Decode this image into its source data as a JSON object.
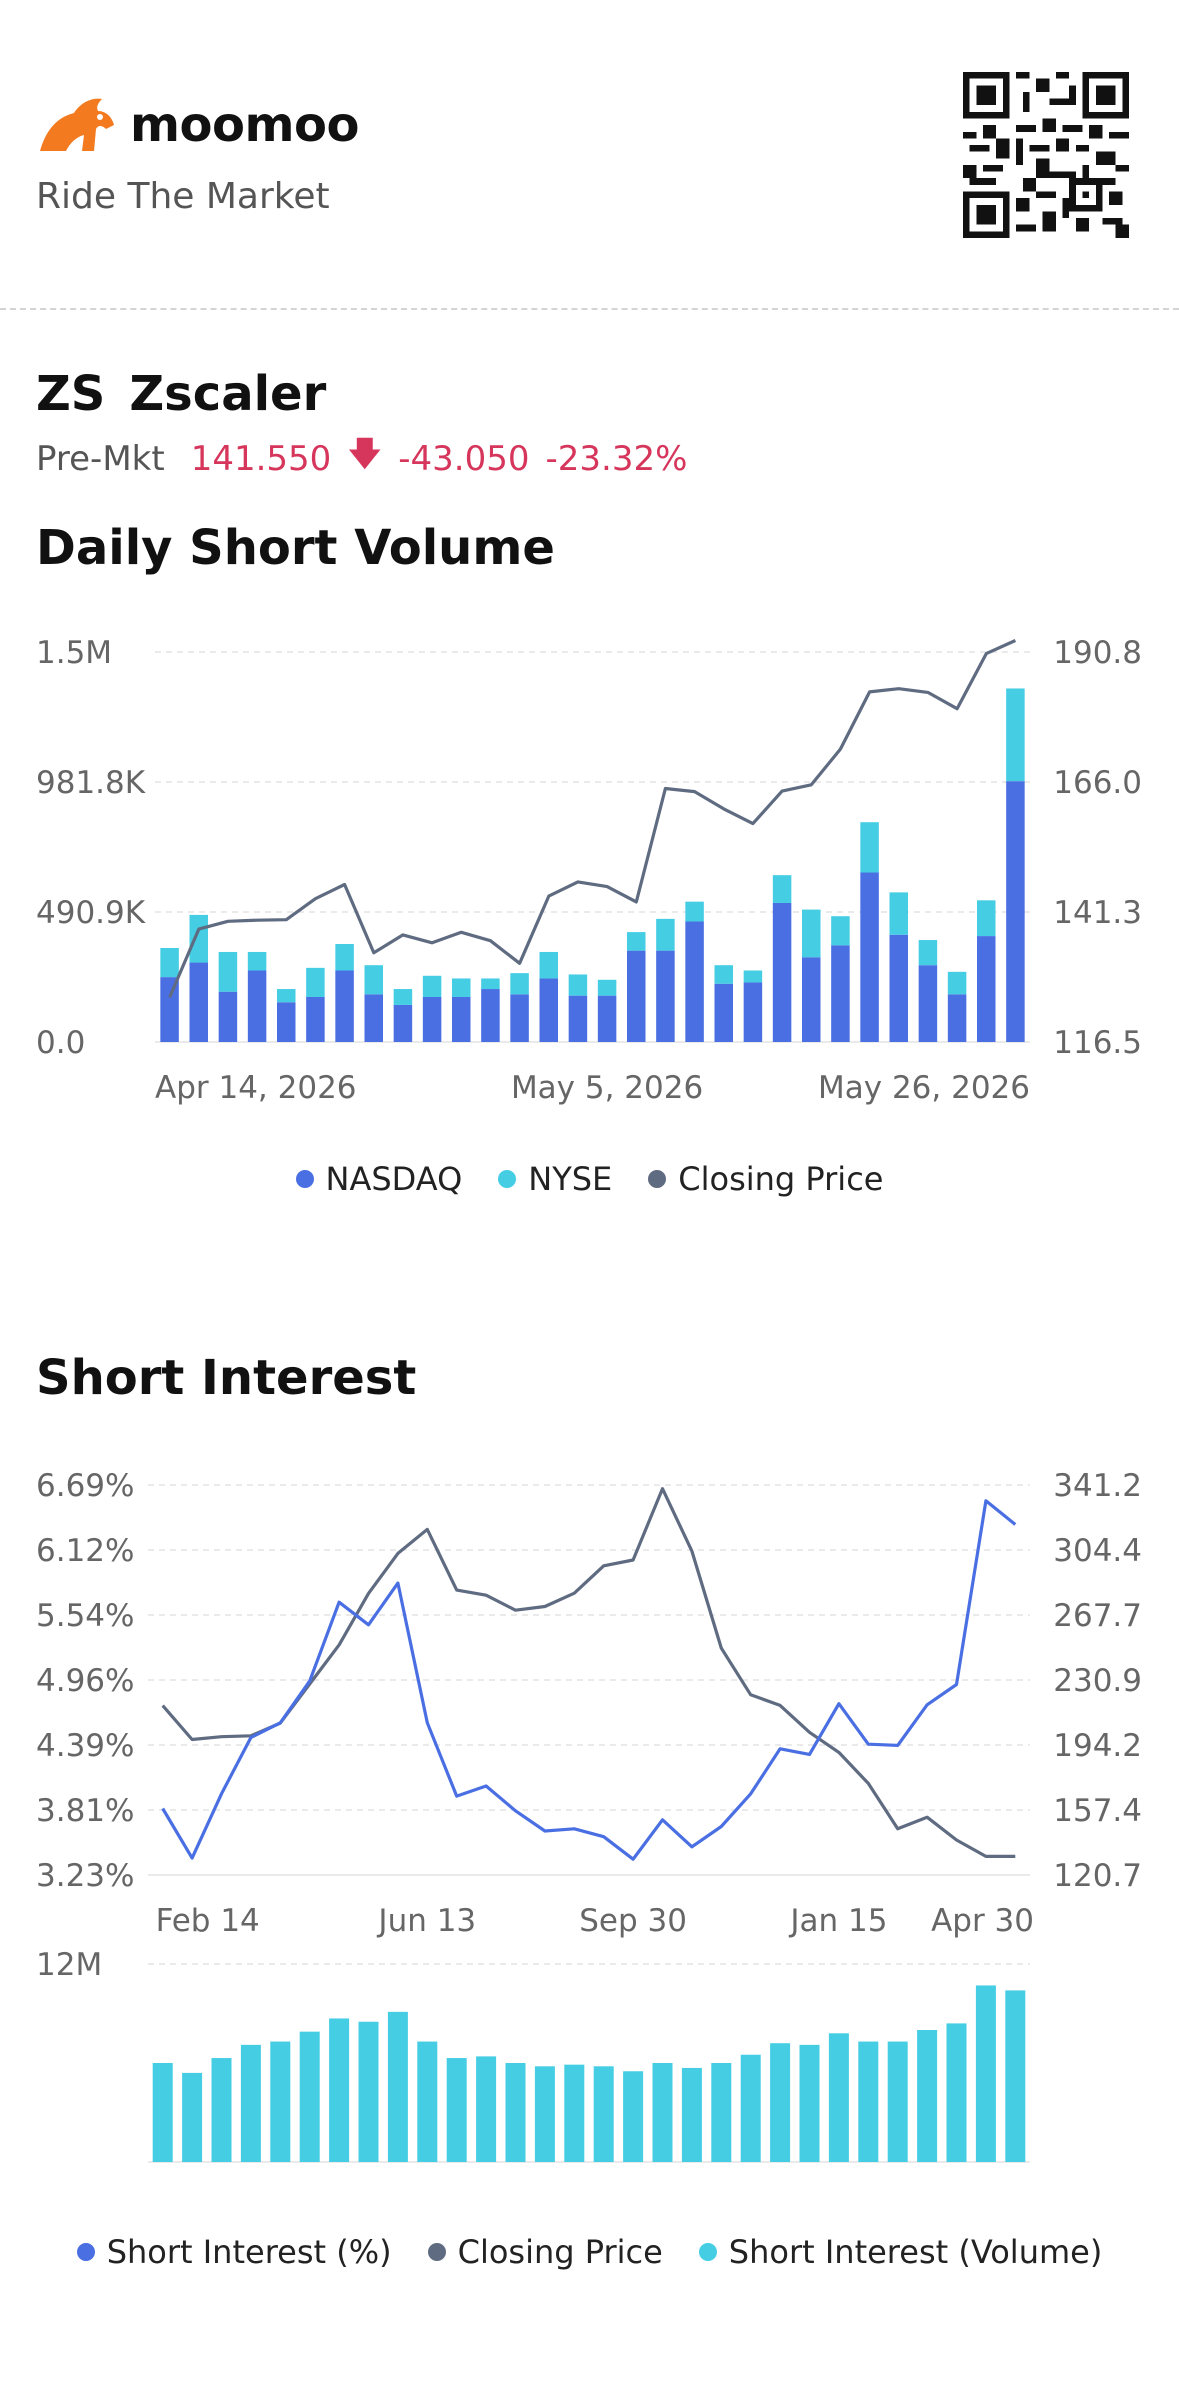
{
  "brand": {
    "name": "moomoo",
    "tagline": "Ride The Market"
  },
  "stock": {
    "symbol": "ZS",
    "name": "Zscaler",
    "session_label": "Pre-Mkt",
    "price": "141.550",
    "change": "-43.050",
    "change_pct": "-23.32%"
  },
  "colors": {
    "nasdaq": "#4a6fe3",
    "nyse": "#45cde4",
    "price_line": "#5f6b80",
    "negative": "#d6365b"
  },
  "sections": {
    "daily_short_volume": "Daily Short Volume",
    "short_interest": "Short Interest"
  },
  "chart_data": [
    {
      "type": "bar",
      "title": "Daily Short Volume",
      "stacked": true,
      "left_axis": {
        "ticks": [
          "0.0",
          "490.9K",
          "981.8K",
          "1.5M"
        ],
        "range": [
          0,
          1472700
        ]
      },
      "right_axis": {
        "ticks": [
          "116.5",
          "141.3",
          "166.0",
          "190.8"
        ],
        "range": [
          116.5,
          190.8
        ]
      },
      "x_ticks": [
        {
          "index": 0,
          "label": "Apr 14, 2026"
        },
        {
          "index": 15,
          "label": "May 5, 2026"
        },
        {
          "index": 30,
          "label": "May 26, 2026"
        }
      ],
      "series": [
        {
          "name": "NASDAQ",
          "type": "bar",
          "values": [
            245000,
            300000,
            190000,
            270000,
            150000,
            170000,
            270000,
            180000,
            140000,
            170000,
            170000,
            200000,
            180000,
            240000,
            175000,
            175000,
            345000,
            345000,
            455000,
            220000,
            225000,
            525000,
            320000,
            365000,
            640000,
            405000,
            290000,
            180000,
            400000,
            985000
          ]
        },
        {
          "name": "NYSE",
          "type": "bar",
          "values": [
            110000,
            180000,
            150000,
            70000,
            50000,
            110000,
            100000,
            110000,
            60000,
            80000,
            70000,
            40000,
            80000,
            100000,
            80000,
            60000,
            70000,
            120000,
            75000,
            70000,
            45000,
            105000,
            180000,
            110000,
            190000,
            160000,
            95000,
            85000,
            135000,
            350000
          ]
        },
        {
          "name": "Closing Price",
          "type": "line",
          "values": [
            125.0,
            138.0,
            139.5,
            139.7,
            139.8,
            143.8,
            146.5,
            133.5,
            136.9,
            135.4,
            137.4,
            135.8,
            131.5,
            144.3,
            147.0,
            146.1,
            143.2,
            164.8,
            164.2,
            160.9,
            158.1,
            164.3,
            165.5,
            172.3,
            183.2,
            183.8,
            183.1,
            180.0,
            190.5,
            193.0
          ]
        }
      ],
      "legend": [
        "NASDAQ",
        "NYSE",
        "Closing Price"
      ]
    },
    {
      "type": "line",
      "title": "Short Interest",
      "left_axis": {
        "ticks": [
          "3.23%",
          "3.81%",
          "4.39%",
          "4.96%",
          "5.54%",
          "6.12%",
          "6.69%"
        ],
        "range": [
          3.23,
          6.69
        ]
      },
      "right_axis": {
        "ticks": [
          "120.7",
          "157.4",
          "194.2",
          "230.9",
          "267.7",
          "304.4",
          "341.2"
        ],
        "range": [
          120.7,
          341.2
        ]
      },
      "x_ticks": [
        {
          "index": 0,
          "label": "Feb 14"
        },
        {
          "index": 9,
          "label": "Jun 13"
        },
        {
          "index": 16,
          "label": "Sep 30"
        },
        {
          "index": 23,
          "label": "Jan 15"
        },
        {
          "index": 29,
          "label": "Apr 30"
        }
      ],
      "series": [
        {
          "name": "Short Interest (%)",
          "axis": "left",
          "values": [
            3.82,
            3.38,
            3.95,
            4.45,
            4.58,
            4.95,
            5.65,
            5.45,
            5.82,
            4.58,
            3.93,
            4.02,
            3.8,
            3.62,
            3.64,
            3.57,
            3.37,
            3.72,
            3.48,
            3.66,
            3.95,
            4.35,
            4.3,
            4.75,
            4.39,
            4.38,
            4.74,
            4.92,
            6.55,
            6.34
          ]
        },
        {
          "name": "Closing Price",
          "axis": "right",
          "values": [
            216.5,
            197.3,
            198.9,
            199.4,
            206.6,
            228.7,
            250.8,
            279.9,
            302.5,
            316.1,
            281.8,
            278.9,
            270.4,
            272.5,
            280.0,
            295.5,
            298.8,
            339.1,
            303.8,
            249.0,
            222.6,
            216.6,
            201.4,
            190.0,
            172.5,
            146.9,
            153.4,
            140.5,
            131.2,
            131.2
          ]
        }
      ]
    },
    {
      "type": "bar",
      "title": "Short Interest (Volume)",
      "y_max_label": "12M",
      "range": [
        0,
        12000000
      ],
      "values": [
        6000000,
        5400000,
        6300000,
        7100000,
        7300000,
        7900000,
        8700000,
        8500000,
        9100000,
        7300000,
        6300000,
        6400000,
        6000000,
        5800000,
        5900000,
        5800000,
        5500000,
        6000000,
        5700000,
        6000000,
        6500000,
        7200000,
        7100000,
        7800000,
        7300000,
        7300000,
        8000000,
        8400000,
        10700000,
        10400000
      ],
      "legend": [
        "Short Interest (%)",
        "Closing Price",
        "Short Interest (Volume)"
      ]
    }
  ]
}
